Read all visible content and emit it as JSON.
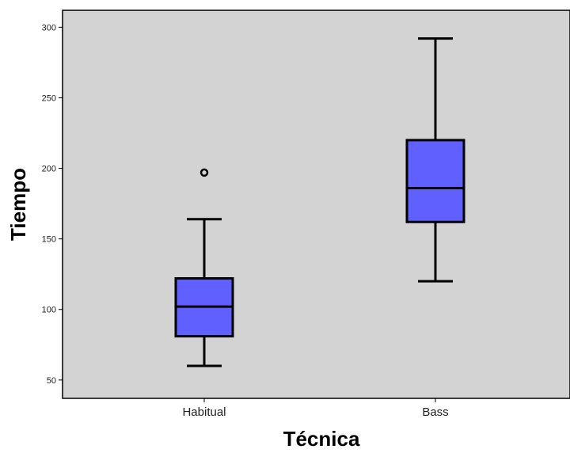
{
  "chart_data": {
    "type": "boxplot",
    "title": "",
    "xlabel": "Técnica",
    "ylabel": "Tiempo",
    "ylim": [
      37,
      312
    ],
    "yticks": [
      50,
      100,
      150,
      200,
      250,
      300
    ],
    "ytick_labels": [
      "50",
      "100",
      "150",
      "200",
      "250",
      "300"
    ],
    "grid": false,
    "legend": "none",
    "categories": [
      "Habitual",
      "Bass"
    ],
    "boxes": [
      {
        "category": "Habitual",
        "whisker_low": 60,
        "q1": 81,
        "median": 102,
        "q3": 122,
        "whisker_high": 164,
        "outliers": [
          197
        ]
      },
      {
        "category": "Bass",
        "whisker_low": 120,
        "q1": 162,
        "median": 186,
        "q3": 220,
        "whisker_high": 292,
        "outliers": []
      }
    ]
  },
  "colors": {
    "plot_background": "#d3d3d3",
    "box_fill": "#6060ff",
    "stroke": "#000000"
  }
}
